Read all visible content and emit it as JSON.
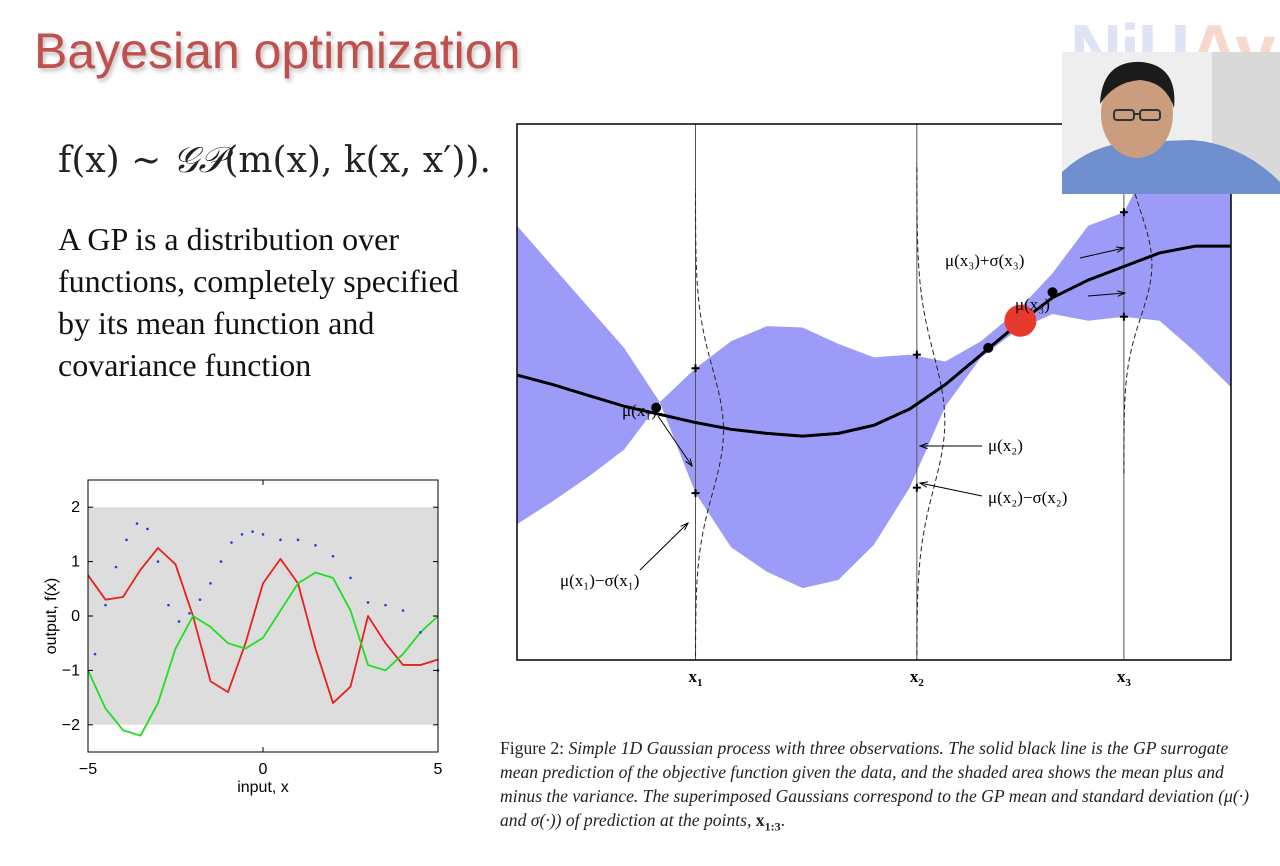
{
  "slide": {
    "title": "Bayesian optimization",
    "logo": {
      "part1": "NiU",
      "part2": "Av"
    },
    "formula": {
      "f": "f(x) ~ ",
      "gp": "𝒢𝒫",
      "rest": "(m(x), k(x, x′))."
    },
    "body_text": "A GP is a distribution over functions, completely specified by its mean function and covariance function"
  },
  "chart_data": [
    {
      "type": "line",
      "title": "",
      "xlabel": "input, x",
      "ylabel": "output, f(x)",
      "xlim": [
        -5,
        5
      ],
      "ylim": [
        -2.5,
        2.5
      ],
      "xticks": [
        "−5",
        "0",
        "5"
      ],
      "yticks": [
        "2",
        "1",
        "0",
        "−1",
        "−2"
      ],
      "band": {
        "lower": -2,
        "upper": 2,
        "color": "#dddddd"
      },
      "series": [
        {
          "name": "red sample",
          "color": "#e8211c",
          "style": "solid",
          "x": [
            -5,
            -4.5,
            -4,
            -3.5,
            -3,
            -2.5,
            -2,
            -1.5,
            -1,
            -0.5,
            0,
            0.5,
            1,
            1.5,
            2,
            2.5,
            3,
            3.5,
            4,
            4.5,
            5
          ],
          "y": [
            0.75,
            0.3,
            0.35,
            0.85,
            1.25,
            0.95,
            0.0,
            -1.2,
            -1.4,
            -0.5,
            0.6,
            1.05,
            0.6,
            -0.6,
            -1.6,
            -1.3,
            0.0,
            -0.5,
            -0.9,
            -0.9,
            -0.8
          ]
        },
        {
          "name": "green sample",
          "color": "#22dd22",
          "style": "solid",
          "x": [
            -5,
            -4.5,
            -4,
            -3.5,
            -3,
            -2.5,
            -2,
            -1.5,
            -1,
            -0.5,
            0,
            0.5,
            1,
            1.5,
            2,
            2.5,
            3,
            3.5,
            4,
            4.5,
            5
          ],
          "y": [
            -1.0,
            -1.7,
            -2.1,
            -2.2,
            -1.6,
            -0.6,
            0.0,
            -0.2,
            -0.5,
            -0.6,
            -0.4,
            0.1,
            0.6,
            0.8,
            0.7,
            0.1,
            -0.9,
            -1.0,
            -0.7,
            -0.3,
            0.0
          ]
        },
        {
          "name": "blue sample",
          "color": "#1f3fd1",
          "style": "dotted",
          "x": [
            -4.8,
            -4.5,
            -4.2,
            -3.9,
            -3.6,
            -3.3,
            -3,
            -2.7,
            -2.4,
            -2.1,
            -1.8,
            -1.5,
            -1.2,
            -0.9,
            -0.6,
            -0.3,
            0,
            0.5,
            1,
            1.5,
            2,
            2.5,
            3,
            3.5,
            4,
            4.5,
            5
          ],
          "y": [
            -0.7,
            0.2,
            0.9,
            1.4,
            1.7,
            1.6,
            1.0,
            0.2,
            -0.1,
            0.05,
            0.3,
            0.6,
            1.0,
            1.35,
            1.5,
            1.55,
            1.5,
            1.4,
            1.4,
            1.3,
            1.1,
            0.7,
            0.25,
            0.2,
            0.1,
            -0.3,
            -1.0
          ]
        }
      ]
    },
    {
      "type": "area",
      "title": "",
      "xlabel": "",
      "ylabel": "",
      "xlim": [
        0,
        10
      ],
      "ylim": [
        -1.95,
        2.0
      ],
      "categories": [
        "x1",
        "x2",
        "x3"
      ],
      "observations_x": [
        2.5,
        5.6,
        8.5
      ],
      "observations_y": [
        -0.2,
        -0.2,
        0.8
      ],
      "mean": {
        "x": [
          0,
          0.5,
          1,
          1.5,
          2,
          2.5,
          3,
          3.5,
          4,
          4.5,
          5,
          5.5,
          6,
          6.5,
          7,
          7.5,
          8,
          8.5,
          9,
          9.5,
          10
        ],
        "y": [
          0.15,
          0.08,
          0.0,
          -0.08,
          -0.14,
          -0.2,
          -0.25,
          -0.28,
          -0.3,
          -0.28,
          -0.22,
          -0.1,
          0.08,
          0.3,
          0.52,
          0.72,
          0.85,
          0.95,
          1.05,
          1.1,
          1.1
        ]
      },
      "band": {
        "x": [
          0,
          0.5,
          1,
          1.5,
          2,
          2.5,
          3,
          3.5,
          4,
          4.5,
          5,
          5.5,
          6,
          6.5,
          7,
          7.5,
          8,
          8.5,
          9,
          9.5,
          10
        ],
        "lower": [
          -0.95,
          -0.78,
          -0.6,
          -0.4,
          -0.05,
          -0.72,
          -1.12,
          -1.3,
          -1.42,
          -1.36,
          -1.1,
          -0.68,
          -0.08,
          0.28,
          0.48,
          0.6,
          0.55,
          0.58,
          0.55,
          0.32,
          0.06
        ],
        "upper": [
          1.25,
          0.95,
          0.65,
          0.35,
          -0.05,
          0.2,
          0.4,
          0.51,
          0.5,
          0.38,
          0.28,
          0.3,
          0.25,
          0.4,
          0.62,
          0.9,
          1.25,
          1.35,
          1.85,
          2.15,
          2.3
        ],
        "color": "#9c9cf8"
      },
      "markers": [
        {
          "x": 1.95,
          "y": -0.09
        },
        {
          "x": 6.6,
          "y": 0.35
        },
        {
          "x": 7.5,
          "y": 0.76
        }
      ],
      "highlight_point": {
        "x": 7.05,
        "y": 0.55,
        "color": "#e83a2c"
      },
      "annotations": [
        {
          "text": "μ(x₁)"
        },
        {
          "text": "μ(x₁)−σ(x₁)"
        },
        {
          "text": "μ(x₂)"
        },
        {
          "text": "μ(x₂)−σ(x₂)"
        },
        {
          "text": "μ(x₃)"
        },
        {
          "text": "μ(x₃)+σ(x₃)"
        }
      ]
    }
  ],
  "caption": {
    "label": "Figure 2:",
    "text": "Simple 1D Gaussian process with three observations. The solid black line is the GP surrogate mean prediction of the objective function given the data, and the shaded area shows the mean plus and minus the variance. The superimposed Gaussians correspond to the GP mean and standard deviation (μ(·) and σ(·)) of prediction at the points,",
    "points_label": "x",
    "points_sub": "1:3",
    "end": "."
  }
}
